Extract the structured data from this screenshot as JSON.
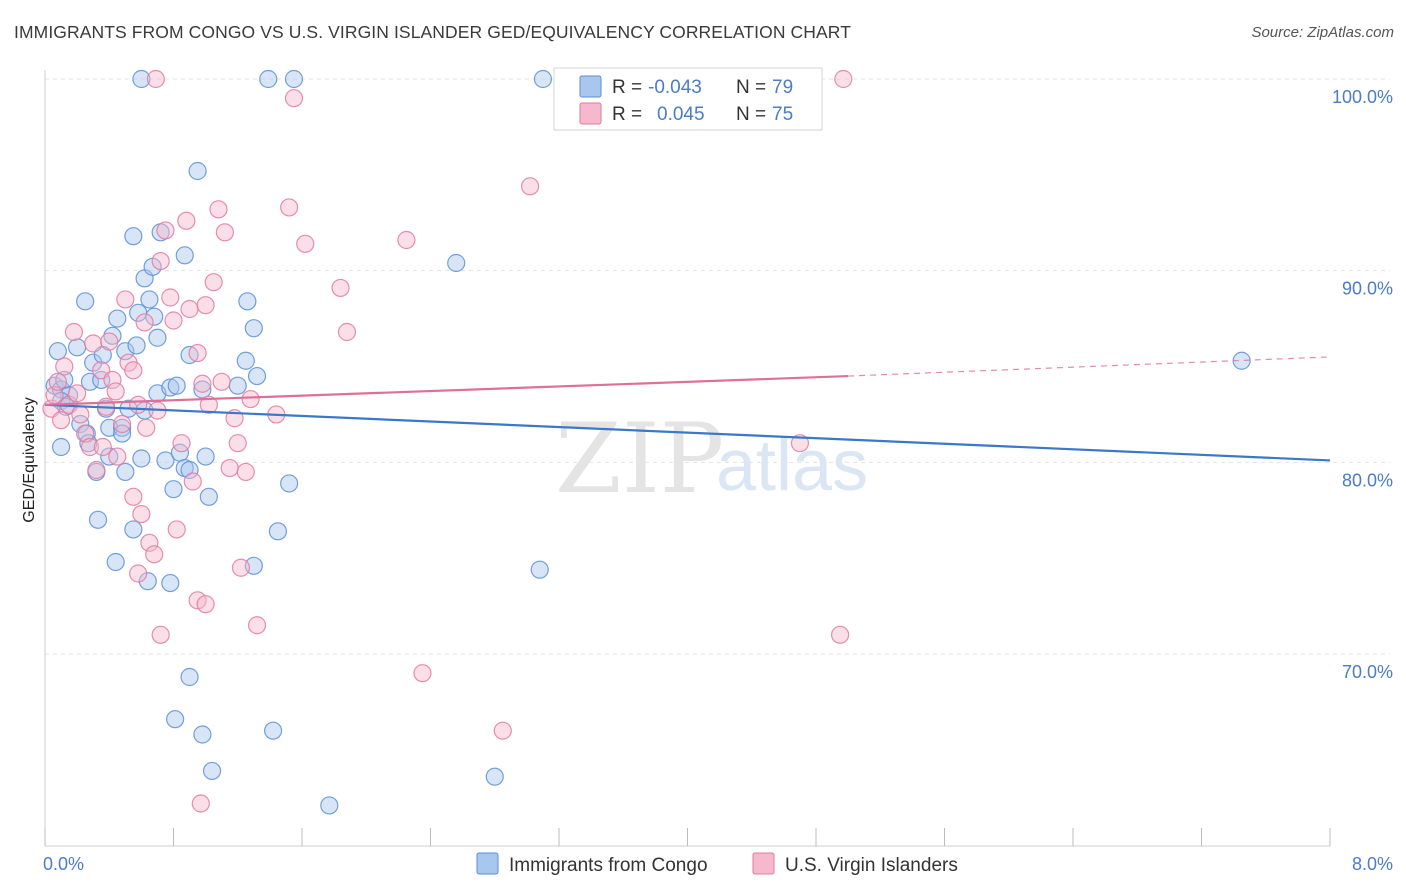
{
  "header": {
    "title": "IMMIGRANTS FROM CONGO VS U.S. VIRGIN ISLANDER GED/EQUIVALENCY CORRELATION CHART",
    "source": "Source: ZipAtlas.com"
  },
  "watermark": {
    "part1": "ZIP",
    "part2": "atlas"
  },
  "colors": {
    "congo_fill": "#a9c6ee",
    "congo_stroke": "#5b8fd6",
    "congo_line": "#3a78c9",
    "vi_fill": "#f5b8cd",
    "vi_stroke": "#e27aa0",
    "vi_line": "#e06f98",
    "grid": "#e3e3e3",
    "tick_text": "#4a7cc8"
  },
  "legend": {
    "rows": [
      {
        "r_label": "R = ",
        "r_value": "-0.043",
        "n_label": "N = ",
        "n_value": "79"
      },
      {
        "r_label": "R = ",
        "r_value": "0.045",
        "n_label": "N = ",
        "n_value": "75"
      }
    ]
  },
  "chart_data": {
    "type": "scatter",
    "title": "IMMIGRANTS FROM CONGO VS U.S. VIRGIN ISLANDER GED/EQUIVALENCY CORRELATION CHART",
    "xlabel": "",
    "ylabel": "GED/Equivalency",
    "xlim": [
      0,
      8
    ],
    "ylim": [
      60,
      100
    ],
    "x_tick_labels": [
      "0.0%",
      "8.0%"
    ],
    "y_ticks": [
      70,
      80,
      90,
      100
    ],
    "y_tick_labels": [
      "70.0%",
      "80.0%",
      "90.0%",
      "100.0%"
    ],
    "series": [
      {
        "name": "Immigrants from Congo",
        "r": -0.043,
        "n": 79,
        "trend": {
          "x": [
            0,
            8
          ],
          "y": [
            83.0,
            80.1
          ]
        },
        "points": [
          [
            0.06,
            84.0
          ],
          [
            0.1,
            83.8
          ],
          [
            0.12,
            84.3
          ],
          [
            0.15,
            83.5
          ],
          [
            0.1,
            83.2
          ],
          [
            0.08,
            85.8
          ],
          [
            0.13,
            82.9
          ],
          [
            0.1,
            80.8
          ],
          [
            0.2,
            86.0
          ],
          [
            0.25,
            88.4
          ],
          [
            0.28,
            84.2
          ],
          [
            0.22,
            82.0
          ],
          [
            0.26,
            81.5
          ],
          [
            0.3,
            85.2
          ],
          [
            0.27,
            81.0
          ],
          [
            0.35,
            84.3
          ],
          [
            0.38,
            82.8
          ],
          [
            0.32,
            79.5
          ],
          [
            0.33,
            77.0
          ],
          [
            0.36,
            85.6
          ],
          [
            0.4,
            80.3
          ],
          [
            0.4,
            81.8
          ],
          [
            0.42,
            86.6
          ],
          [
            0.45,
            87.5
          ],
          [
            0.48,
            81.8
          ],
          [
            0.48,
            81.5
          ],
          [
            0.5,
            85.8
          ],
          [
            0.5,
            79.5
          ],
          [
            0.52,
            82.8
          ],
          [
            0.55,
            91.8
          ],
          [
            0.57,
            86.1
          ],
          [
            0.55,
            76.5
          ],
          [
            0.6,
            80.2
          ],
          [
            0.58,
            87.8
          ],
          [
            0.62,
            89.6
          ],
          [
            0.62,
            82.7
          ],
          [
            0.65,
            88.5
          ],
          [
            0.67,
            90.2
          ],
          [
            0.68,
            87.6
          ],
          [
            0.7,
            86.5
          ],
          [
            0.7,
            83.6
          ],
          [
            0.72,
            92.0
          ],
          [
            0.75,
            80.1
          ],
          [
            0.78,
            83.9
          ],
          [
            0.8,
            78.6
          ],
          [
            0.82,
            84.0
          ],
          [
            0.84,
            80.5
          ],
          [
            0.87,
            90.8
          ],
          [
            0.87,
            79.7
          ],
          [
            0.9,
            85.6
          ],
          [
            0.9,
            79.6
          ],
          [
            0.95,
            95.2
          ],
          [
            0.98,
            83.8
          ],
          [
            1.0,
            80.3
          ],
          [
            1.02,
            78.2
          ],
          [
            1.2,
            84.0
          ],
          [
            1.25,
            85.3
          ],
          [
            1.26,
            88.4
          ],
          [
            1.3,
            87.0
          ],
          [
            1.32,
            84.5
          ],
          [
            1.52,
            78.9
          ],
          [
            1.45,
            76.4
          ],
          [
            1.3,
            74.6
          ],
          [
            0.64,
            73.8
          ],
          [
            0.78,
            73.7
          ],
          [
            0.9,
            68.8
          ],
          [
            0.81,
            66.6
          ],
          [
            0.98,
            65.8
          ],
          [
            1.04,
            63.9
          ],
          [
            1.42,
            66.0
          ],
          [
            1.77,
            62.1
          ],
          [
            0.44,
            74.8
          ],
          [
            0.6,
            100.0
          ],
          [
            1.39,
            100.0
          ],
          [
            1.55,
            100.0
          ],
          [
            3.1,
            100.0
          ],
          [
            2.56,
            90.4
          ],
          [
            3.08,
            74.4
          ],
          [
            2.8,
            63.6
          ],
          [
            7.45,
            85.3
          ]
        ]
      },
      {
        "name": "U.S. Virgin Islanders",
        "r": 0.045,
        "n": 75,
        "trend": {
          "x": [
            0,
            5.0
          ],
          "y": [
            83.0,
            84.5
          ],
          "dashed_to": {
            "x": 8,
            "y": 85.5
          }
        },
        "points": [
          [
            0.04,
            82.8
          ],
          [
            0.06,
            83.5
          ],
          [
            0.08,
            84.2
          ],
          [
            0.1,
            82.2
          ],
          [
            0.12,
            85.0
          ],
          [
            0.15,
            83.0
          ],
          [
            0.18,
            86.8
          ],
          [
            0.2,
            83.6
          ],
          [
            0.22,
            82.5
          ],
          [
            0.25,
            81.5
          ],
          [
            0.28,
            80.8
          ],
          [
            0.3,
            86.2
          ],
          [
            0.32,
            79.6
          ],
          [
            0.35,
            84.8
          ],
          [
            0.36,
            80.8
          ],
          [
            0.38,
            82.9
          ],
          [
            0.4,
            86.3
          ],
          [
            0.42,
            84.3
          ],
          [
            0.44,
            83.7
          ],
          [
            0.45,
            80.3
          ],
          [
            0.48,
            82.0
          ],
          [
            0.5,
            88.5
          ],
          [
            0.52,
            85.2
          ],
          [
            0.55,
            84.8
          ],
          [
            0.55,
            78.2
          ],
          [
            0.58,
            83.0
          ],
          [
            0.6,
            77.3
          ],
          [
            0.62,
            87.3
          ],
          [
            0.63,
            81.8
          ],
          [
            0.65,
            75.8
          ],
          [
            0.68,
            75.2
          ],
          [
            0.7,
            82.7
          ],
          [
            0.72,
            90.5
          ],
          [
            0.75,
            92.1
          ],
          [
            0.78,
            88.6
          ],
          [
            0.8,
            87.4
          ],
          [
            0.82,
            76.5
          ],
          [
            0.85,
            81.0
          ],
          [
            0.88,
            92.6
          ],
          [
            0.9,
            88.0
          ],
          [
            0.92,
            79.0
          ],
          [
            0.95,
            85.7
          ],
          [
            0.98,
            84.1
          ],
          [
            1.0,
            88.2
          ],
          [
            1.02,
            83.0
          ],
          [
            1.05,
            89.4
          ],
          [
            1.08,
            93.2
          ],
          [
            1.1,
            84.2
          ],
          [
            1.12,
            92.0
          ],
          [
            1.15,
            79.7
          ],
          [
            1.18,
            82.3
          ],
          [
            1.2,
            81.0
          ],
          [
            1.22,
            74.5
          ],
          [
            1.25,
            79.5
          ],
          [
            1.28,
            83.3
          ],
          [
            1.32,
            71.5
          ],
          [
            1.44,
            82.5
          ],
          [
            1.52,
            93.3
          ],
          [
            1.62,
            91.4
          ],
          [
            1.55,
            99.0
          ],
          [
            1.84,
            89.1
          ],
          [
            1.88,
            86.8
          ],
          [
            2.25,
            91.6
          ],
          [
            2.35,
            69.0
          ],
          [
            2.85,
            66.0
          ],
          [
            3.02,
            94.4
          ],
          [
            4.97,
            100.0
          ],
          [
            4.95,
            71.0
          ],
          [
            4.7,
            81.0
          ],
          [
            0.72,
            71.0
          ],
          [
            0.95,
            72.8
          ],
          [
            1.0,
            72.6
          ],
          [
            0.97,
            62.2
          ],
          [
            0.58,
            74.2
          ],
          [
            0.69,
            100.0
          ]
        ]
      }
    ]
  }
}
